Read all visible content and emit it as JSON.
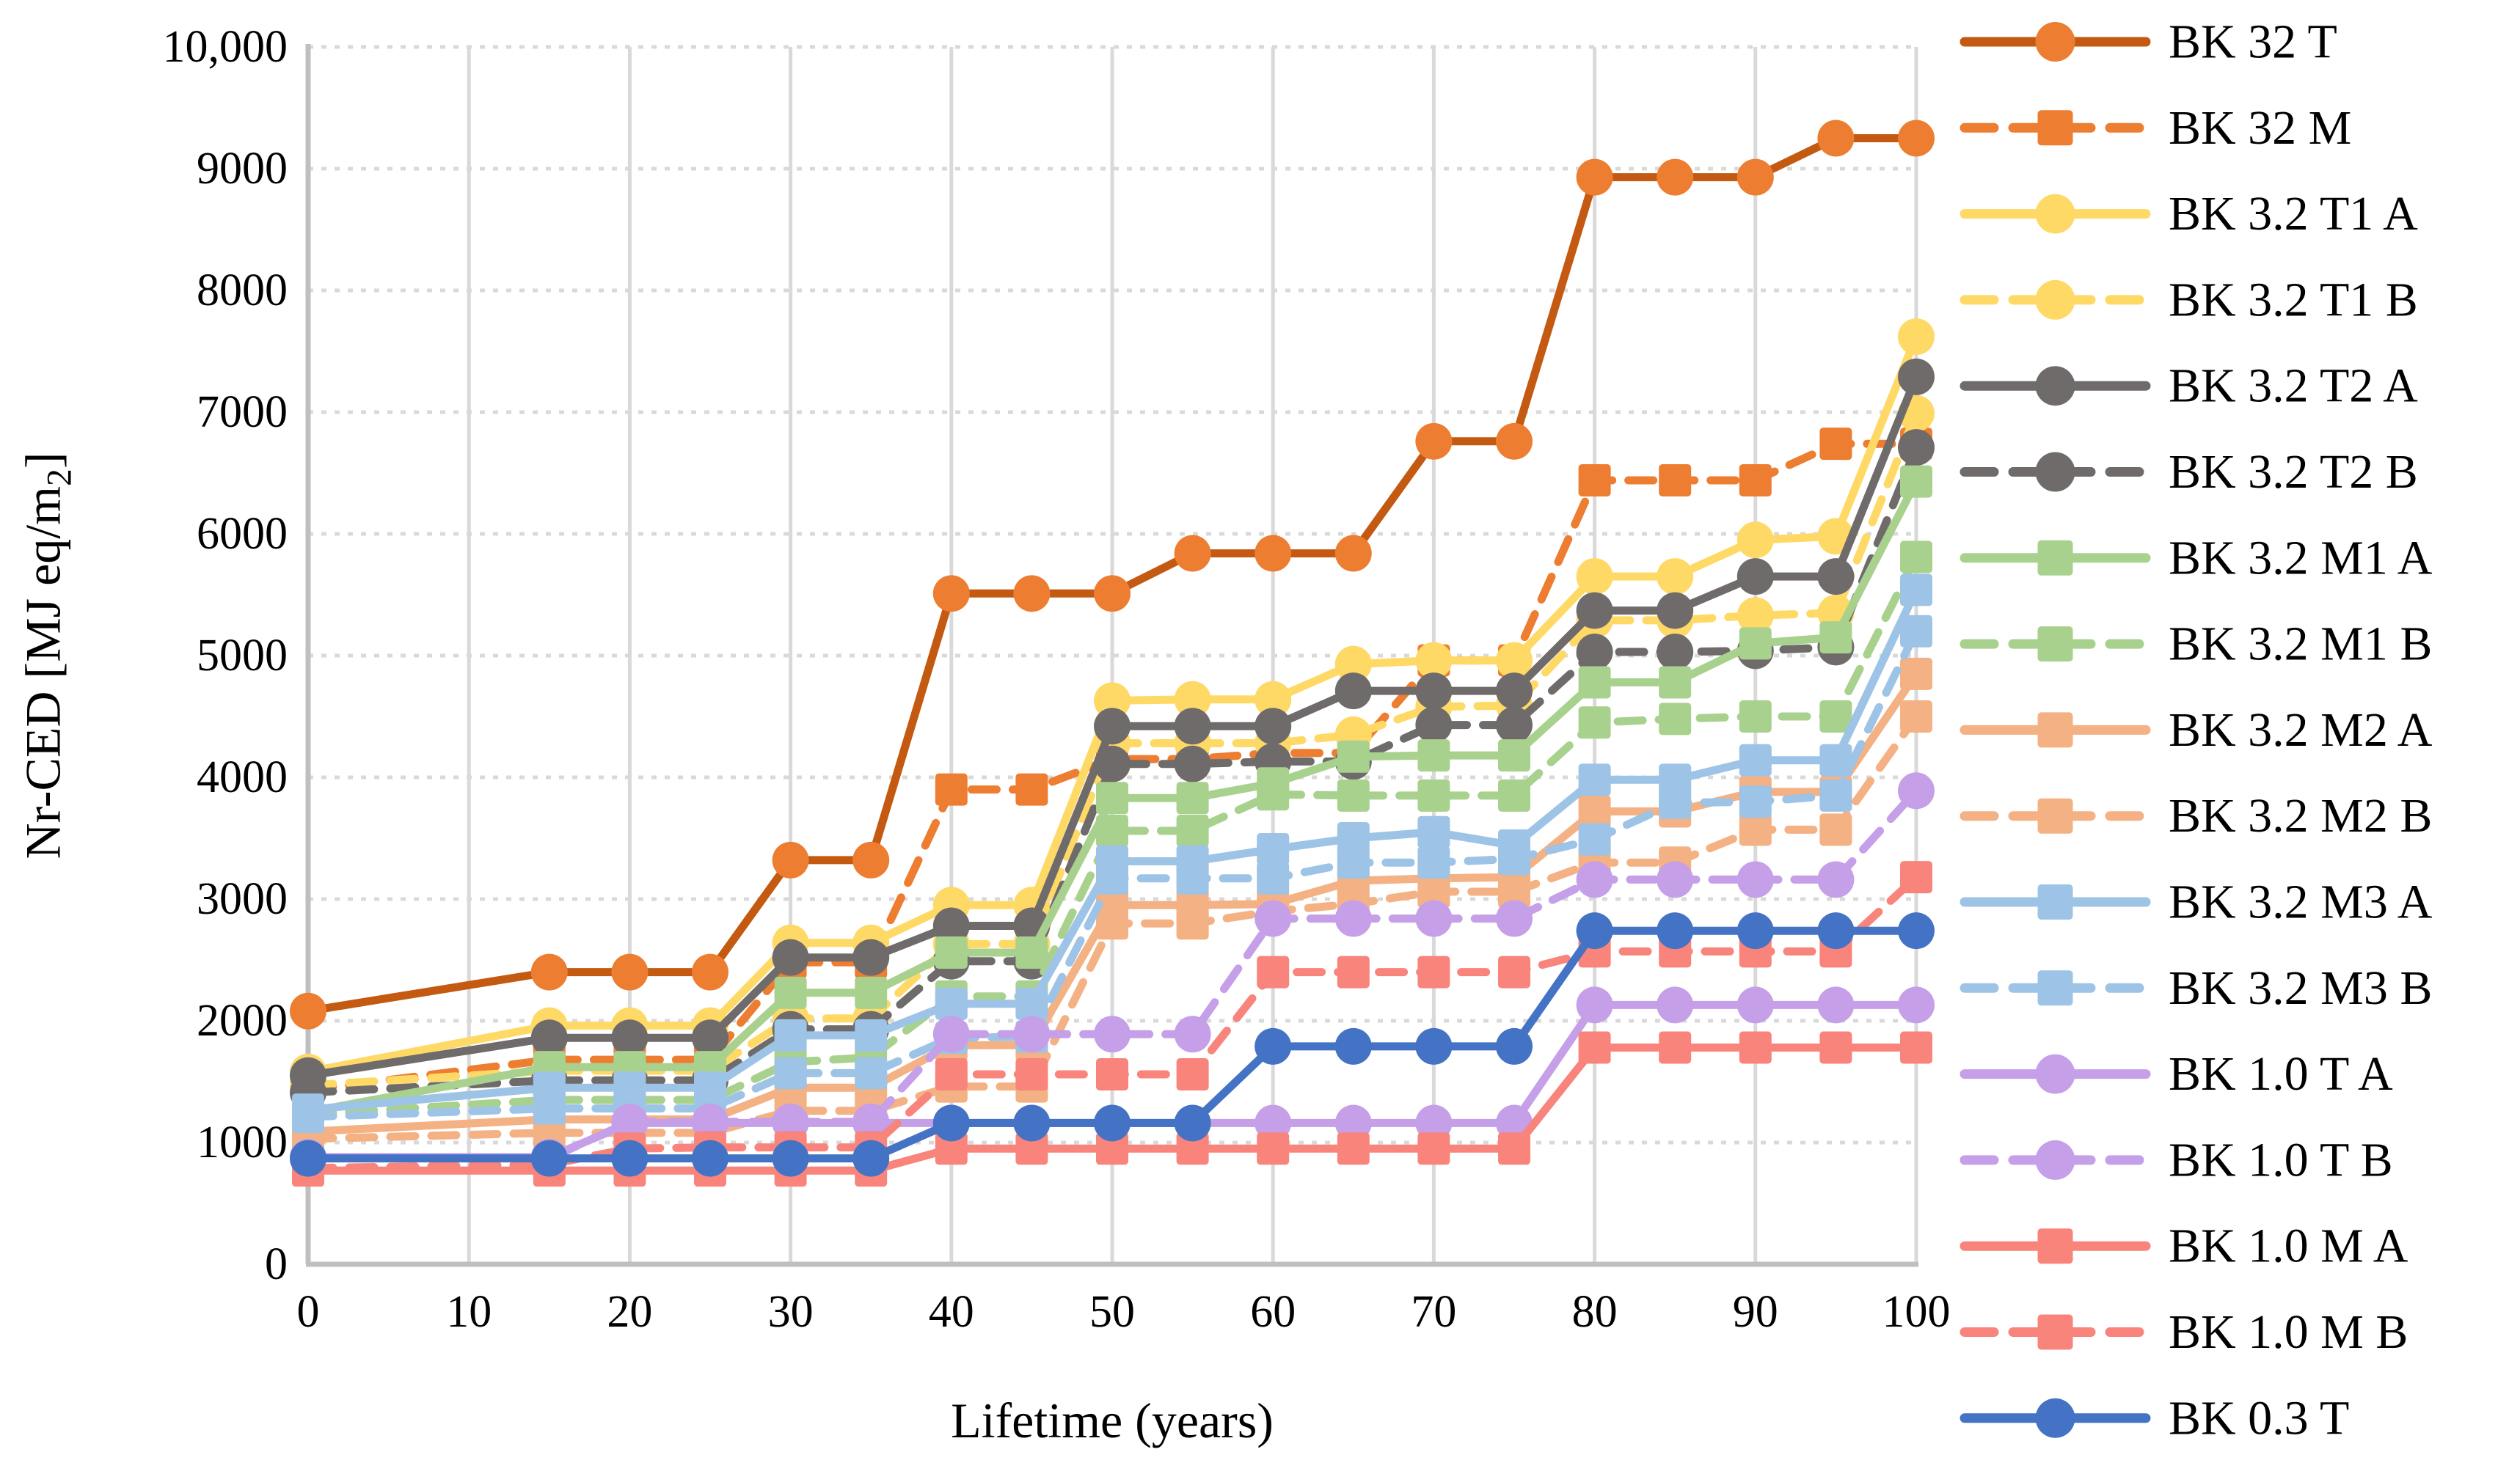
{
  "chart_data": {
    "type": "line",
    "title": "",
    "xlabel": "Lifetime (years)",
    "ylabel": {
      "prefix": "Nr-CED [MJ eq/m",
      "sub": "2",
      "suffix": "]"
    },
    "x": [
      0,
      15,
      20,
      25,
      30,
      35,
      40,
      45,
      50,
      55,
      60,
      65,
      70,
      75,
      80,
      85,
      90,
      95,
      100
    ],
    "xlim": [
      0,
      100
    ],
    "ylim": [
      0,
      10000
    ],
    "xticks": {
      "values": [
        0,
        10,
        20,
        30,
        40,
        50,
        60,
        70,
        80,
        90,
        100
      ],
      "labels": [
        "0",
        "10",
        "20",
        "30",
        "40",
        "50",
        "60",
        "70",
        "80",
        "90",
        "100"
      ]
    },
    "yticks": {
      "values": [
        0,
        1000,
        2000,
        3000,
        4000,
        5000,
        6000,
        7000,
        8000,
        9000,
        10000
      ],
      "labels": [
        "0",
        "1000",
        "2000",
        "3000",
        "4000",
        "5000",
        "6000",
        "7000",
        "8000",
        "9000",
        "10,000"
      ]
    },
    "grid": {
      "horizontal": "dotted",
      "vertical": "solid",
      "color": "#D9D9D9",
      "axis_color": "#BFBFBF"
    },
    "legend_position": "right",
    "series": [
      {
        "id": "bk-32-t",
        "name": "BK 32 T",
        "color": "#C45911",
        "marker_color": "#ED7D31",
        "dash": false,
        "marker": "circle",
        "values": [
          2080,
          2400,
          2400,
          2400,
          3320,
          3320,
          5510,
          5510,
          5510,
          5840,
          5840,
          5840,
          6760,
          6760,
          8930,
          8930,
          8930,
          9250,
          9250
        ]
      },
      {
        "id": "bk-32-m",
        "name": "BK 32 M",
        "color": "#ED7D31",
        "dash": true,
        "marker": "square",
        "values": [
          1430,
          1680,
          1680,
          1680,
          2480,
          2480,
          3900,
          3900,
          4150,
          4150,
          4200,
          4200,
          4960,
          4960,
          6440,
          6440,
          6440,
          6740,
          6740
        ]
      },
      {
        "id": "bk-32-t1-a",
        "name": "BK 3.2 T1 A",
        "color": "#FFD966",
        "dash": false,
        "marker": "circle",
        "values": [
          1580,
          1960,
          1960,
          1960,
          2640,
          2640,
          2950,
          2950,
          4630,
          4640,
          4640,
          4930,
          4960,
          4960,
          5650,
          5650,
          5950,
          5980,
          7620
        ]
      },
      {
        "id": "bk-32-t1-b",
        "name": "BK 3.2 T1 B",
        "color": "#FFD966",
        "dash": true,
        "marker": "circle",
        "values": [
          1470,
          1590,
          1590,
          1590,
          2020,
          2020,
          2630,
          2630,
          4280,
          4280,
          4280,
          4350,
          4580,
          4590,
          5290,
          5290,
          5330,
          5350,
          6990
        ]
      },
      {
        "id": "bk-32-t2-a",
        "name": "BK 3.2 T2 A",
        "color": "#6F6B6B",
        "dash": false,
        "marker": "circle",
        "values": [
          1550,
          1860,
          1860,
          1860,
          2520,
          2520,
          2780,
          2780,
          4420,
          4420,
          4420,
          4710,
          4710,
          4710,
          5370,
          5370,
          5650,
          5650,
          7290
        ]
      },
      {
        "id": "bk-32-t2-b",
        "name": "BK 3.2 T2 B",
        "color": "#6F6B6B",
        "dash": true,
        "marker": "circle",
        "values": [
          1410,
          1510,
          1510,
          1510,
          1930,
          1930,
          2490,
          2490,
          4110,
          4110,
          4130,
          4130,
          4430,
          4430,
          5030,
          5030,
          5040,
          5070,
          6710
        ]
      },
      {
        "id": "bk-32-m1-a",
        "name": "BK 3.2 M1 A",
        "color": "#A9D18E",
        "dash": false,
        "marker": "square",
        "values": [
          1250,
          1620,
          1620,
          1620,
          2230,
          2230,
          2560,
          2560,
          3830,
          3830,
          3950,
          4170,
          4180,
          4180,
          4780,
          4780,
          5100,
          5150,
          6430
        ]
      },
      {
        "id": "bk-32-m1-b",
        "name": "BK 3.2 M1 B",
        "color": "#A9D18E",
        "dash": true,
        "marker": "square",
        "values": [
          1230,
          1350,
          1350,
          1350,
          1660,
          1700,
          2200,
          2200,
          3560,
          3560,
          3860,
          3850,
          3850,
          3850,
          4450,
          4480,
          4500,
          4500,
          5810
        ]
      },
      {
        "id": "bk-32-m2-a",
        "name": "BK 3.2 M2 A",
        "color": "#F4B183",
        "dash": false,
        "marker": "square",
        "values": [
          1090,
          1190,
          1190,
          1190,
          1450,
          1450,
          1800,
          1800,
          2950,
          2950,
          2960,
          3150,
          3170,
          3180,
          3720,
          3720,
          3880,
          3880,
          4850
        ]
      },
      {
        "id": "bk-32-m2-b",
        "name": "BK 3.2 M2 B",
        "color": "#F4B183",
        "dash": true,
        "marker": "square",
        "values": [
          1030,
          1080,
          1080,
          1080,
          1260,
          1260,
          1460,
          1460,
          2800,
          2800,
          2900,
          2960,
          3060,
          3060,
          3300,
          3300,
          3570,
          3570,
          4500
        ]
      },
      {
        "id": "bk-32-m3-a",
        "name": "BK 3.2 M3 A",
        "color": "#9DC3E6",
        "dash": false,
        "marker": "square",
        "values": [
          1270,
          1450,
          1450,
          1450,
          1880,
          1880,
          2140,
          2140,
          3310,
          3310,
          3410,
          3500,
          3550,
          3440,
          3980,
          3980,
          4140,
          4140,
          5540
        ]
      },
      {
        "id": "bk-32-m3-b",
        "name": "BK 3.2 M3 B",
        "color": "#9DC3E6",
        "dash": true,
        "marker": "square",
        "values": [
          1210,
          1280,
          1280,
          1280,
          1570,
          1570,
          1860,
          1870,
          3170,
          3170,
          3170,
          3300,
          3300,
          3330,
          3490,
          3790,
          3800,
          3850,
          5200
        ]
      },
      {
        "id": "bk-10-t-a",
        "name": "BK 1.0 T A",
        "color": "#C59FE8",
        "dash": false,
        "marker": "circle",
        "values": [
          880,
          880,
          1160,
          1160,
          1160,
          1160,
          1160,
          1160,
          1160,
          1160,
          1160,
          1160,
          1160,
          1160,
          2130,
          2130,
          2130,
          2130,
          2130
        ]
      },
      {
        "id": "bk-10-t-b",
        "name": "BK 1.0 T B",
        "color": "#C59FE8",
        "dash": true,
        "marker": "circle",
        "values": [
          870,
          870,
          1170,
          1170,
          1170,
          1170,
          1890,
          1890,
          1890,
          1890,
          2840,
          2840,
          2840,
          2840,
          3160,
          3160,
          3160,
          3160,
          3890
        ]
      },
      {
        "id": "bk-10-m-a",
        "name": "BK 1.0 M A",
        "color": "#F8847C",
        "dash": false,
        "marker": "square",
        "values": [
          770,
          770,
          770,
          770,
          770,
          770,
          950,
          950,
          950,
          950,
          950,
          950,
          950,
          950,
          1780,
          1780,
          1780,
          1780,
          1780
        ]
      },
      {
        "id": "bk-10-m-b",
        "name": "BK 1.0 M B",
        "color": "#F8847C",
        "dash": true,
        "marker": "square",
        "values": [
          790,
          820,
          950,
          960,
          960,
          960,
          1560,
          1560,
          1560,
          1560,
          2400,
          2400,
          2400,
          2400,
          2570,
          2570,
          2570,
          2570,
          3180
        ]
      },
      {
        "id": "bk-03-t",
        "name": "BK 0.3 T",
        "color": "#4472C4",
        "dash": false,
        "marker": "circle",
        "values": [
          870,
          870,
          870,
          870,
          870,
          870,
          1160,
          1160,
          1160,
          1160,
          1790,
          1790,
          1790,
          1790,
          2740,
          2740,
          2740,
          2740,
          2740
        ]
      }
    ]
  }
}
